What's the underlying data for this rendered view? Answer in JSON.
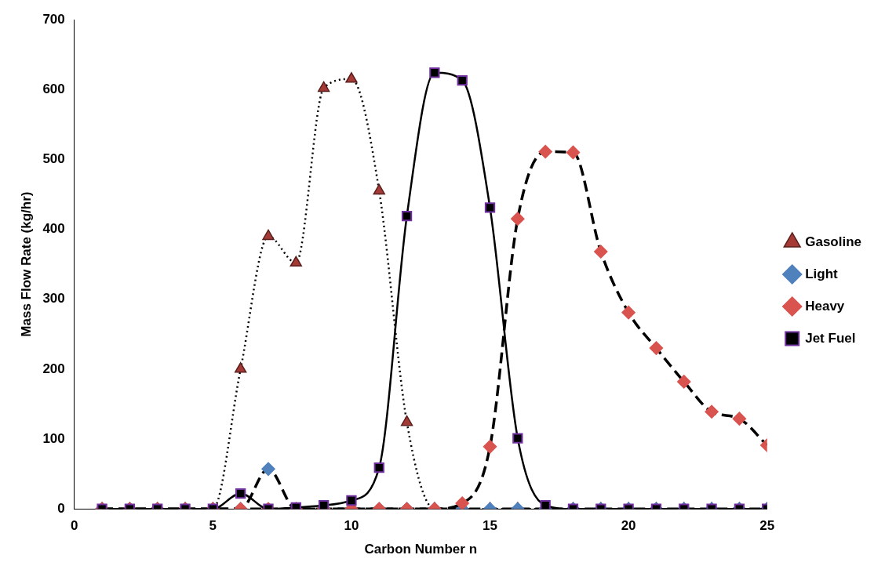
{
  "chart_data": {
    "type": "line",
    "xlabel": "Carbon Number n",
    "ylabel": "Mass Flow Rate (kg/hr)",
    "x": [
      1,
      2,
      3,
      4,
      5,
      6,
      7,
      8,
      9,
      10,
      11,
      12,
      13,
      14,
      15,
      16,
      17,
      18,
      19,
      20,
      21,
      22,
      23,
      24,
      25
    ],
    "xlim": [
      0,
      25
    ],
    "xticks": [
      0,
      5,
      10,
      15,
      20,
      25
    ],
    "ylim": [
      0,
      700
    ],
    "yticks": [
      0,
      100,
      200,
      300,
      400,
      500,
      600,
      700
    ],
    "grid": false,
    "legend": "right",
    "series": [
      {
        "name": "Gasoline",
        "color": "#a33a36",
        "marker": "triangle",
        "line_style": "dotted",
        "values": [
          0,
          0,
          0,
          0,
          0,
          200,
          390,
          352,
          602,
          615,
          455,
          124,
          0,
          0,
          0,
          0,
          0,
          0,
          0,
          0,
          0,
          0,
          0,
          0,
          0
        ]
      },
      {
        "name": "Light",
        "color": "#4f81bd",
        "marker": "diamond",
        "line_style": "dashed",
        "values": [
          0,
          0,
          0,
          0,
          0,
          0,
          57,
          0,
          0,
          0,
          0,
          0,
          0,
          0,
          0,
          0,
          0,
          0,
          0,
          0,
          0,
          0,
          0,
          0,
          0
        ]
      },
      {
        "name": "Heavy",
        "color": "#d9534f",
        "marker": "diamond",
        "line_style": "dashed",
        "values": [
          0,
          0,
          0,
          0,
          0,
          0,
          0,
          0,
          0,
          0,
          0,
          0,
          0,
          8,
          89,
          415,
          511,
          510,
          368,
          281,
          230,
          182,
          139,
          129,
          91
        ]
      },
      {
        "name": "Jet Fuel",
        "color": "#000000",
        "marker": "square",
        "line_style": "solid",
        "values": [
          0,
          0,
          0,
          0,
          0,
          22,
          0,
          2,
          5,
          12,
          59,
          419,
          624,
          613,
          431,
          101,
          5,
          0,
          0,
          0,
          0,
          0,
          0,
          0,
          0
        ]
      }
    ]
  }
}
